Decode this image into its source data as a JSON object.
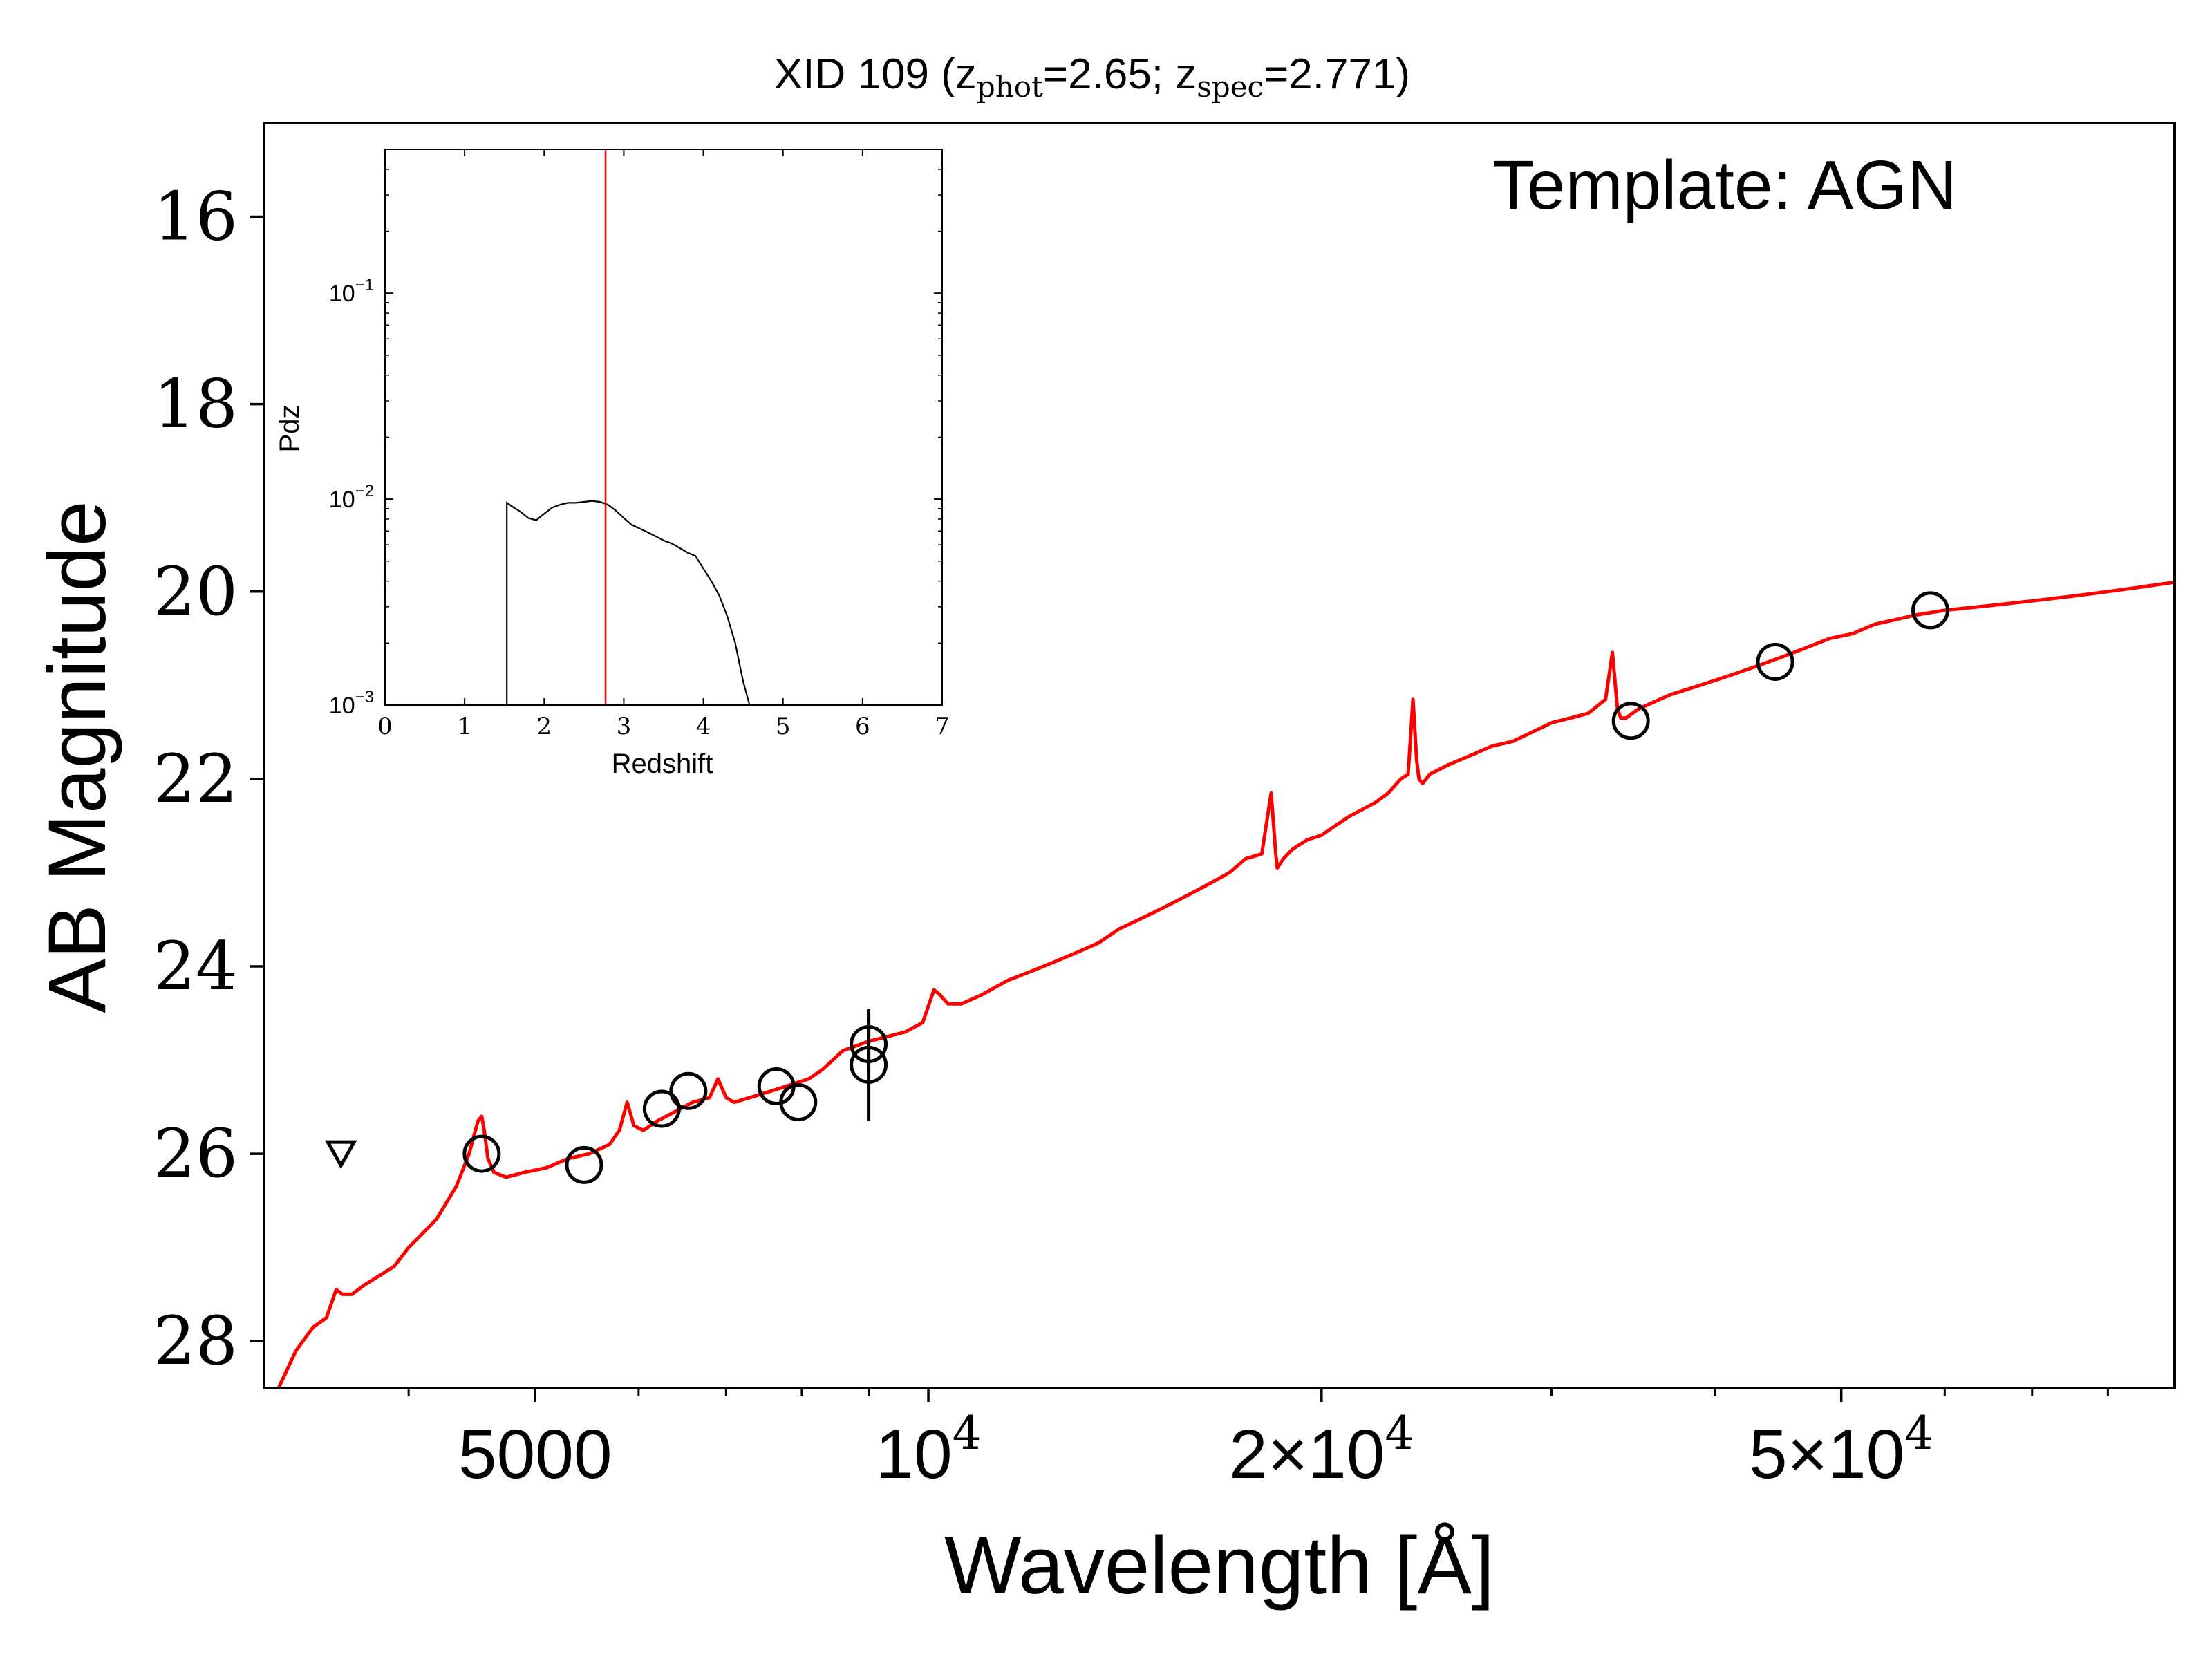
{
  "chart_data": [
    {
      "type": "scatter",
      "title": "XID 109 (z",
      "title_parts": {
        "prefix": "XID 109 (z",
        "phot_sub": "phot",
        "phot_val": "=2.65; z",
        "spec_sub": "spec",
        "spec_val": "=2.771)"
      },
      "annotation": "Template: AGN",
      "xlabel": "Wavelength [Å]",
      "ylabel": "AB Magnitude",
      "x_scale": "log",
      "y_inverted": true,
      "xlim": [
        3100,
        90000
      ],
      "ylim": [
        28.5,
        15.0
      ],
      "x_ticks": [
        {
          "value": 5000,
          "label": "5000"
        },
        {
          "value": 10000,
          "label": "10",
          "exp": "4"
        },
        {
          "value": 20000,
          "label": "2×10",
          "exp": "4"
        },
        {
          "value": 50000,
          "label": "5×10",
          "exp": "4"
        }
      ],
      "y_ticks": [
        {
          "value": 16,
          "label": "16"
        },
        {
          "value": 18,
          "label": "18"
        },
        {
          "value": 20,
          "label": "20"
        },
        {
          "value": 22,
          "label": "22"
        },
        {
          "value": 24,
          "label": "24"
        },
        {
          "value": 26,
          "label": "26"
        },
        {
          "value": 28,
          "label": "28"
        }
      ],
      "colors": {
        "template": "#ff0000",
        "points": "#000000"
      },
      "upper_limits": [
        {
          "x": 3550,
          "y": 26.0
        }
      ],
      "photometry": [
        {
          "x": 4550,
          "y": 26.0
        },
        {
          "x": 5450,
          "y": 26.12
        },
        {
          "x": 6250,
          "y": 25.52
        },
        {
          "x": 6550,
          "y": 25.33
        },
        {
          "x": 7650,
          "y": 25.28
        },
        {
          "x": 7950,
          "y": 25.45
        },
        {
          "x": 9000,
          "y": 24.83,
          "err": 0.3
        },
        {
          "x": 9000,
          "y": 25.05,
          "err": 0.6
        },
        {
          "x": 34500,
          "y": 21.38
        },
        {
          "x": 44500,
          "y": 20.75
        },
        {
          "x": 58500,
          "y": 20.2
        }
      ],
      "template_curve": {
        "name": "AGN",
        "x": [
          3180,
          3280,
          3380,
          3460,
          3520,
          3560,
          3620,
          3700,
          3800,
          3900,
          4000,
          4100,
          4200,
          4350,
          4450,
          4520,
          4550,
          4570,
          4600,
          4650,
          4750,
          4900,
          5100,
          5300,
          5500,
          5700,
          5800,
          5880,
          5950,
          6050,
          6200,
          6400,
          6600,
          6800,
          6900,
          7000,
          7100,
          7300,
          7500,
          7700,
          7900,
          8100,
          8300,
          8600,
          8800,
          9000,
          9300,
          9600,
          9900,
          10100,
          10200,
          10350,
          10600,
          11000,
          11500,
          12000,
          12500,
          13000,
          13500,
          14000,
          14500,
          15000,
          15500,
          16000,
          16500,
          17000,
          17500,
          18000,
          18300,
          18450,
          18500,
          18600,
          18700,
          19000,
          19500,
          20000,
          21000,
          22000,
          22500,
          23000,
          23300,
          23500,
          23650,
          23750,
          23900,
          24200,
          25000,
          26000,
          27000,
          28000,
          29000,
          30000,
          31000,
          32000,
          33000,
          33400,
          33700,
          33900,
          34200,
          35000,
          37000,
          39000,
          41000,
          43000,
          45000,
          47000,
          49000,
          51000,
          53000,
          55000,
          57000,
          60000,
          65000,
          70000,
          75000,
          80000,
          85000,
          90000
        ],
        "y": [
          28.5,
          28.1,
          27.85,
          27.75,
          27.45,
          27.5,
          27.5,
          27.4,
          27.3,
          27.2,
          27.0,
          26.85,
          26.7,
          26.35,
          26.0,
          25.65,
          25.6,
          25.75,
          26.05,
          26.2,
          26.25,
          26.2,
          26.15,
          26.05,
          26.0,
          25.9,
          25.75,
          25.45,
          25.7,
          25.75,
          25.65,
          25.55,
          25.45,
          25.4,
          25.2,
          25.4,
          25.45,
          25.4,
          25.35,
          25.3,
          25.25,
          25.2,
          25.1,
          24.9,
          24.85,
          24.8,
          24.75,
          24.7,
          24.6,
          24.25,
          24.3,
          24.4,
          24.4,
          24.3,
          24.15,
          24.05,
          23.95,
          23.85,
          23.75,
          23.6,
          23.5,
          23.4,
          23.3,
          23.2,
          23.1,
          23.0,
          22.85,
          22.8,
          22.15,
          22.8,
          22.95,
          22.9,
          22.85,
          22.75,
          22.65,
          22.6,
          22.4,
          22.25,
          22.15,
          22.0,
          21.95,
          21.15,
          21.8,
          22.0,
          22.05,
          21.95,
          21.85,
          21.75,
          21.65,
          21.6,
          21.5,
          21.4,
          21.35,
          21.3,
          21.15,
          20.65,
          21.25,
          21.35,
          21.35,
          21.25,
          21.1,
          21.0,
          20.9,
          20.8,
          20.7,
          20.6,
          20.5,
          20.45,
          20.35,
          20.3,
          20.25,
          20.2,
          20.15,
          20.1,
          20.05,
          20.0,
          19.95,
          19.9
        ]
      }
    },
    {
      "type": "line",
      "xlabel": "Redshift",
      "ylabel": "Pdz",
      "y_scale": "log",
      "xlim": [
        0,
        7
      ],
      "ylim": [
        0.001,
        0.5
      ],
      "x_ticks": [
        "0",
        "1",
        "2",
        "3",
        "4",
        "5",
        "6",
        "7"
      ],
      "y_ticks": [
        {
          "value": 0.1,
          "base": "10",
          "exp": "−1"
        },
        {
          "value": 0.01,
          "base": "10",
          "exp": "−2"
        },
        {
          "value": 0.001,
          "base": "10",
          "exp": "−3"
        }
      ],
      "zspec_marker": {
        "x": 2.771,
        "color": "#ff0000"
      },
      "pdz_curve": {
        "x": [
          1.53,
          1.53,
          1.6,
          1.7,
          1.8,
          1.9,
          2.0,
          2.1,
          2.2,
          2.3,
          2.4,
          2.5,
          2.6,
          2.7,
          2.8,
          2.9,
          3.0,
          3.1,
          3.2,
          3.3,
          3.4,
          3.5,
          3.6,
          3.7,
          3.8,
          3.9,
          4.0,
          4.1,
          4.2,
          4.3,
          4.4,
          4.5,
          4.58
        ],
        "y": [
          0.001,
          0.0096,
          0.0092,
          0.0087,
          0.0081,
          0.0079,
          0.0085,
          0.0091,
          0.0094,
          0.0096,
          0.0096,
          0.0097,
          0.0098,
          0.0097,
          0.0094,
          0.0088,
          0.0081,
          0.0075,
          0.0072,
          0.0069,
          0.0066,
          0.0063,
          0.0061,
          0.0058,
          0.0055,
          0.0053,
          0.0046,
          0.004,
          0.0034,
          0.0027,
          0.002,
          0.0013,
          0.001
        ]
      }
    }
  ]
}
